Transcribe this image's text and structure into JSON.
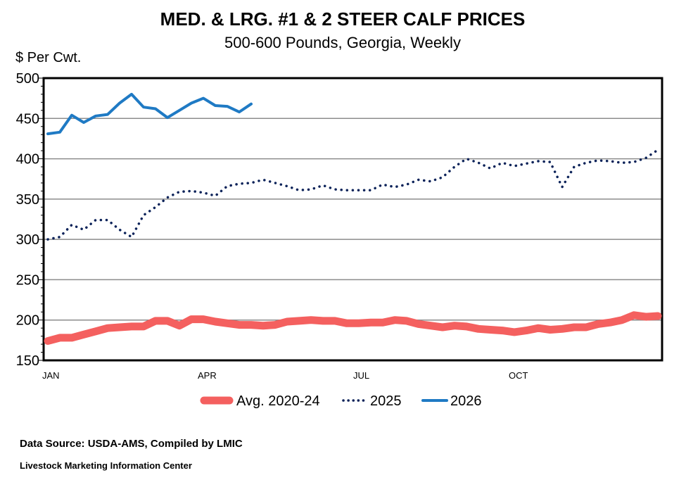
{
  "chart_data": {
    "type": "line",
    "title": "MED. & LRG. #1 & 2 STEER CALF PRICES",
    "subtitle": "500-600 Pounds, Georgia, Weekly",
    "ylabel": "$ Per Cwt.",
    "xlabel": "",
    "ylim": [
      150,
      500
    ],
    "yticks": [
      150,
      200,
      250,
      300,
      350,
      400,
      450,
      500
    ],
    "x_tick_labels": [
      {
        "week": 1,
        "label": "JAN"
      },
      {
        "week": 14,
        "label": "APR"
      },
      {
        "week": 27,
        "label": "JUL"
      },
      {
        "week": 40,
        "label": "OCT"
      }
    ],
    "weeks_total": 52,
    "grid": "horizontal",
    "legend_position": "bottom",
    "series": [
      {
        "name": "Avg. 2020-24",
        "color": "#F4605F",
        "style": "thick",
        "x": [
          1,
          2,
          3,
          4,
          5,
          6,
          7,
          8,
          9,
          10,
          11,
          12,
          13,
          14,
          15,
          16,
          17,
          18,
          19,
          20,
          21,
          22,
          23,
          24,
          25,
          26,
          27,
          28,
          29,
          30,
          31,
          32,
          33,
          34,
          35,
          36,
          37,
          38,
          39,
          40,
          41,
          42,
          43,
          44,
          45,
          46,
          47,
          48,
          49,
          50,
          51,
          52
        ],
        "values": [
          174,
          178,
          178,
          182,
          186,
          190,
          191,
          192,
          192,
          199,
          199,
          193,
          201,
          201,
          198,
          196,
          194,
          194,
          193,
          194,
          198,
          199,
          200,
          199,
          199,
          196,
          196,
          197,
          197,
          200,
          199,
          195,
          193,
          191,
          193,
          192,
          189,
          188,
          187,
          185,
          187,
          190,
          188,
          189,
          191,
          191,
          195,
          197,
          200,
          206,
          204,
          205
        ]
      },
      {
        "name": "2025",
        "color": "#0B2259",
        "style": "dotted",
        "x": [
          1,
          2,
          3,
          4,
          5,
          6,
          7,
          8,
          9,
          10,
          11,
          12,
          13,
          14,
          15,
          16,
          17,
          18,
          19,
          20,
          21,
          22,
          23,
          24,
          25,
          26,
          27,
          28,
          29,
          30,
          31,
          32,
          33,
          34,
          35,
          36,
          37,
          38,
          39,
          40,
          41,
          42,
          43,
          44,
          45,
          46,
          47,
          48,
          49,
          50,
          51,
          52
        ],
        "values": [
          300,
          303,
          318,
          312,
          324,
          324,
          312,
          303,
          330,
          340,
          352,
          359,
          360,
          358,
          354,
          366,
          369,
          370,
          374,
          370,
          366,
          361,
          362,
          367,
          362,
          361,
          361,
          361,
          368,
          365,
          368,
          374,
          372,
          377,
          390,
          400,
          395,
          388,
          395,
          391,
          394,
          397,
          396,
          365,
          390,
          395,
          398,
          397,
          395,
          396,
          401,
          411
        ]
      },
      {
        "name": "2026",
        "color": "#1F7AC4",
        "style": "solid",
        "x": [
          1,
          2,
          3,
          4,
          5,
          6,
          7,
          8,
          9,
          10,
          11,
          12,
          13,
          14,
          15,
          16,
          17,
          18
        ],
        "values": [
          431,
          433,
          454,
          445,
          453,
          455,
          469,
          480,
          464,
          462,
          451,
          460,
          469,
          475,
          466,
          465,
          458,
          468
        ]
      }
    ]
  },
  "footer": {
    "source": "Data Source:  USDA-AMS, Compiled by LMIC",
    "org": "Livestock Marketing Information Center"
  }
}
